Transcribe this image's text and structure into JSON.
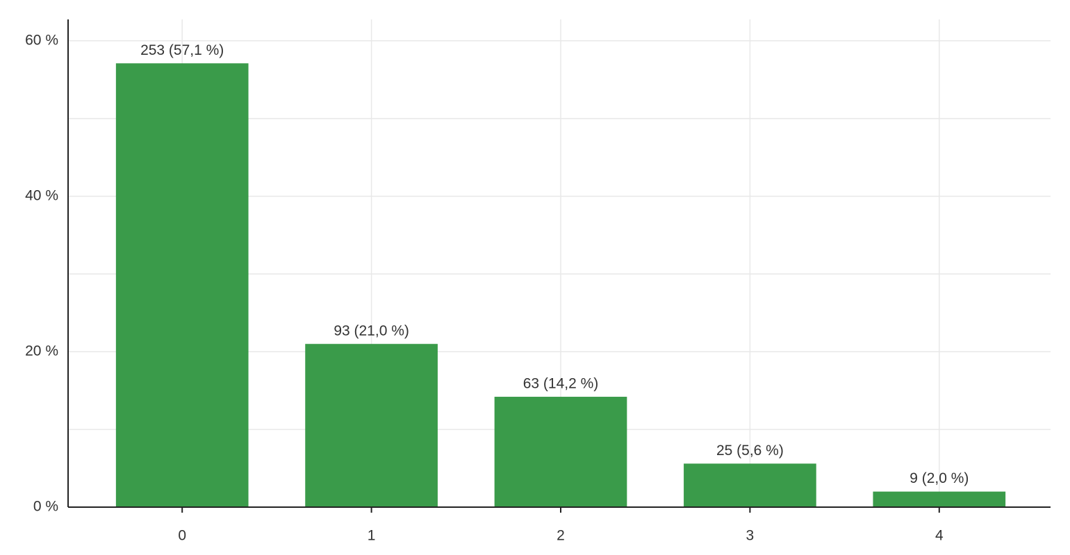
{
  "chart_data": {
    "type": "bar",
    "categories": [
      "0",
      "1",
      "2",
      "3",
      "4"
    ],
    "values": [
      57.1,
      21.0,
      14.2,
      5.6,
      2.0
    ],
    "value_labels": [
      "253 (57,1 %)",
      "93 (21,0 %)",
      "63 (14,2 %)",
      "25 (5,6 %)",
      "9 (2,0 %)"
    ],
    "color": "#3a9b4a",
    "ylim": [
      0,
      64.8
    ],
    "yticks": [
      {
        "value": 0,
        "label": "0 %"
      },
      {
        "value": 20,
        "label": "20 %"
      },
      {
        "value": 40,
        "label": "40 %"
      },
      {
        "value": 60,
        "label": "60 %"
      }
    ],
    "minor_yticks": [
      10,
      30,
      50
    ],
    "grid": true
  }
}
